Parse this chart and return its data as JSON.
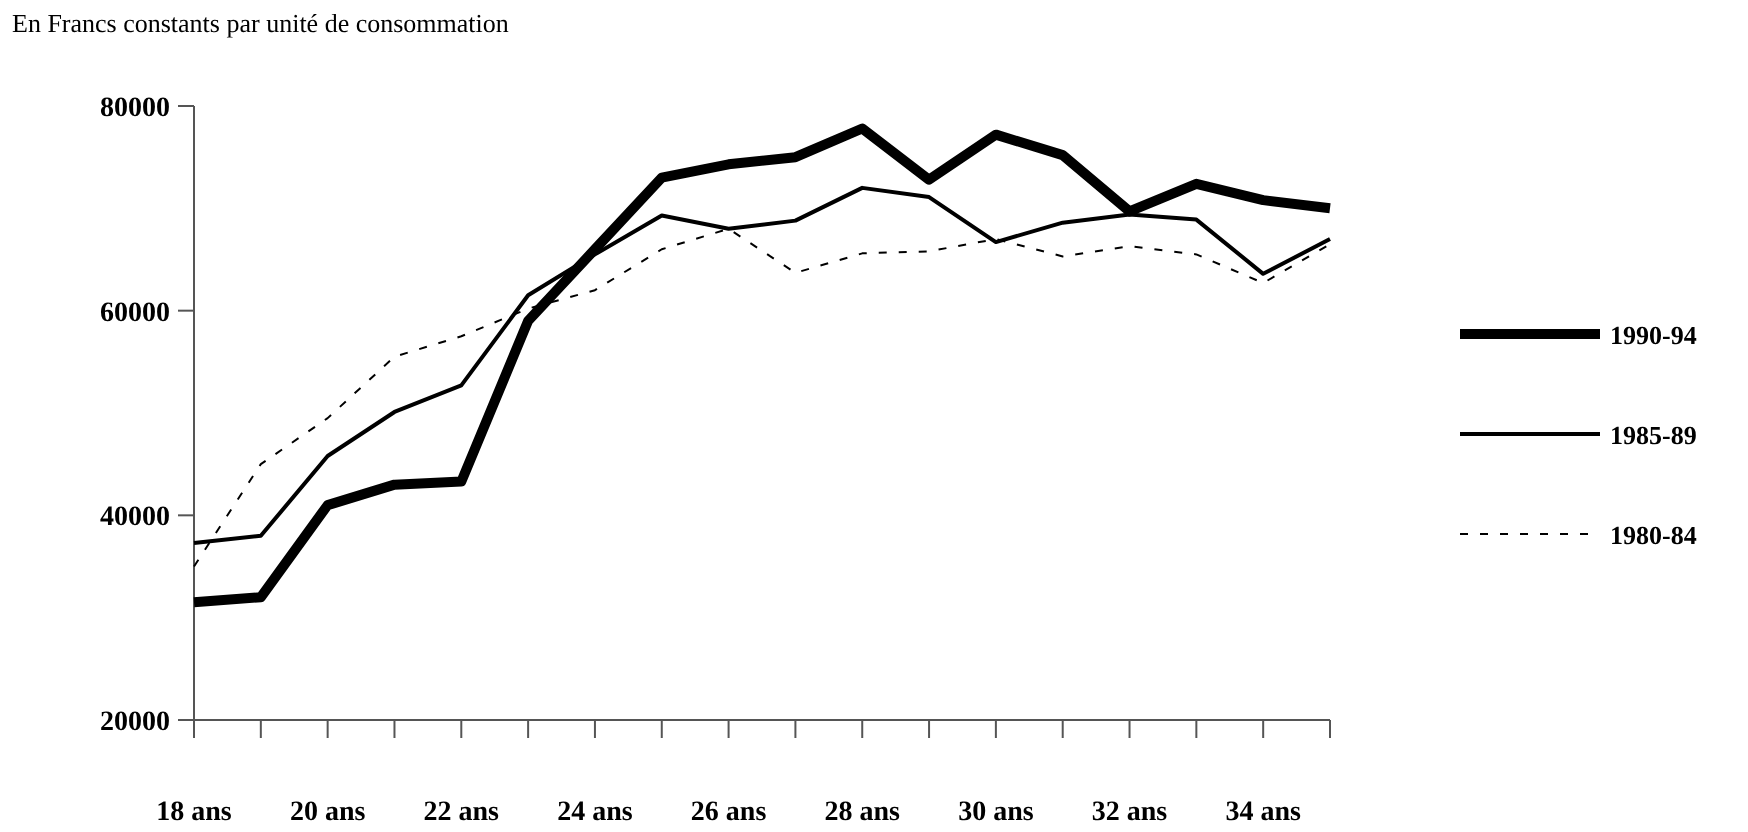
{
  "chart_data": {
    "type": "line",
    "title": "En Francs constants par unité de consommation",
    "categories": [
      "18 ans",
      null,
      "20 ans",
      null,
      "22 ans",
      null,
      "24 ans",
      null,
      "26 ans",
      null,
      "28 ans",
      null,
      "30 ans",
      null,
      "32 ans",
      null,
      "34 ans",
      null
    ],
    "series": [
      {
        "name": "1990-94",
        "color": "#000000",
        "line_style": "solid",
        "values": [
          31500,
          32000,
          41000,
          43000,
          43300,
          59000,
          66000,
          73000,
          74300,
          75000,
          77800,
          72800,
          77200,
          75200,
          69700,
          72400,
          70800,
          70000
        ]
      },
      {
        "name": "1985-89",
        "color": "#000000",
        "line_style": "solid",
        "values": [
          37300,
          38000,
          45800,
          50100,
          52700,
          61500,
          65500,
          69300,
          68000,
          68800,
          72000,
          71100,
          66700,
          68600,
          69400,
          68900,
          63600,
          67000
        ]
      },
      {
        "name": "1980-84",
        "color": "#000000",
        "line_style": "dashed",
        "values": [
          35000,
          45000,
          49500,
          55500,
          57500,
          60200,
          62000,
          66000,
          68000,
          63700,
          65600,
          65800,
          67000,
          65300,
          66300,
          65500,
          62700,
          66500
        ]
      }
    ],
    "ylim": [
      20000,
      80000
    ],
    "yticks": [
      20000,
      40000,
      60000,
      80000
    ],
    "grid": false,
    "legend": "right"
  }
}
